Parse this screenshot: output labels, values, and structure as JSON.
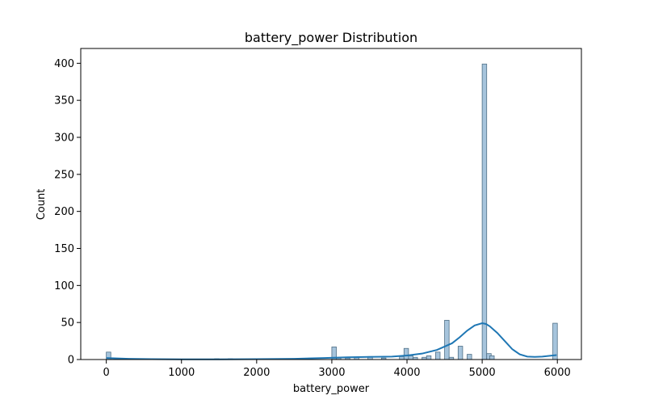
{
  "chart_data": {
    "type": "bar",
    "title": "battery_power Distribution",
    "xlabel": "battery_power",
    "ylabel": "Count",
    "xlim": [
      -340,
      6320
    ],
    "ylim": [
      0,
      420
    ],
    "xticks": [
      0,
      1000,
      2000,
      3000,
      4000,
      5000,
      6000
    ],
    "yticks": [
      0,
      50,
      100,
      150,
      200,
      250,
      300,
      350,
      400
    ],
    "grid": false,
    "legend": "none",
    "bin_width": 60,
    "bars": [
      {
        "x": 0,
        "count": 10
      },
      {
        "x": 1440,
        "count": 1
      },
      {
        "x": 1620,
        "count": 1
      },
      {
        "x": 2580,
        "count": 1
      },
      {
        "x": 3000,
        "count": 17
      },
      {
        "x": 3060,
        "count": 2
      },
      {
        "x": 3180,
        "count": 2
      },
      {
        "x": 3300,
        "count": 3
      },
      {
        "x": 3480,
        "count": 4
      },
      {
        "x": 3660,
        "count": 2
      },
      {
        "x": 3900,
        "count": 4
      },
      {
        "x": 3960,
        "count": 15
      },
      {
        "x": 4020,
        "count": 5
      },
      {
        "x": 4080,
        "count": 3
      },
      {
        "x": 4200,
        "count": 3
      },
      {
        "x": 4260,
        "count": 5
      },
      {
        "x": 4380,
        "count": 10
      },
      {
        "x": 4500,
        "count": 53
      },
      {
        "x": 4560,
        "count": 3
      },
      {
        "x": 4680,
        "count": 18
      },
      {
        "x": 4800,
        "count": 7
      },
      {
        "x": 5000,
        "count": 399
      },
      {
        "x": 5060,
        "count": 8
      },
      {
        "x": 5100,
        "count": 5
      },
      {
        "x": 5940,
        "count": 49
      }
    ],
    "kde": {
      "x": [
        0,
        300,
        600,
        1000,
        1500,
        2000,
        2500,
        2900,
        3200,
        3500,
        3800,
        4000,
        4200,
        4400,
        4600,
        4700,
        4800,
        4900,
        5000,
        5050,
        5100,
        5200,
        5300,
        5400,
        5500,
        5600,
        5700,
        5800,
        5900,
        5990
      ],
      "y": [
        2,
        1,
        0.5,
        0.3,
        0.3,
        0.5,
        1,
        2,
        3,
        3.5,
        4,
        5.5,
        8,
        13,
        22,
        30,
        39,
        46,
        49,
        48,
        45,
        36,
        25,
        14,
        7,
        4,
        3.5,
        4,
        5,
        6
      ]
    },
    "colors": {
      "bar_fill": "#a6c4dc",
      "bar_edge": "#4f6f86",
      "kde_line": "#1f77b4"
    }
  }
}
